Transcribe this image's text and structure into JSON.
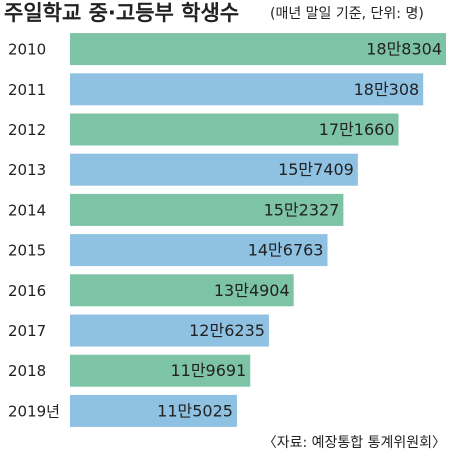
{
  "chart_data": {
    "type": "barh",
    "title": "주일학교 중·고등부 학생수",
    "subtitle": "(매년 말일 기준, 단위: 명)",
    "source": "〈자료: 예장통합 통계위원회〉",
    "categories": [
      "2010",
      "2011",
      "2012",
      "2013",
      "2014",
      "2015",
      "2016",
      "2017",
      "2018",
      "2019년"
    ],
    "values": [
      188304,
      180308,
      171660,
      157409,
      152327,
      146763,
      134904,
      126235,
      119691,
      115025
    ],
    "value_labels": [
      "18만8304",
      "18만308",
      "17만1660",
      "15만7409",
      "15만2327",
      "14만6763",
      "13만4904",
      "12만6235",
      "11만9691",
      "11만5025"
    ],
    "colors": [
      "#7dc3a6",
      "#8fc1e3",
      "#7dc3a6",
      "#8fc1e3",
      "#7dc3a6",
      "#8fc1e3",
      "#7dc3a6",
      "#8fc1e3",
      "#7dc3a6",
      "#8fc1e3"
    ],
    "xlim": [
      56500,
      189700
    ]
  }
}
